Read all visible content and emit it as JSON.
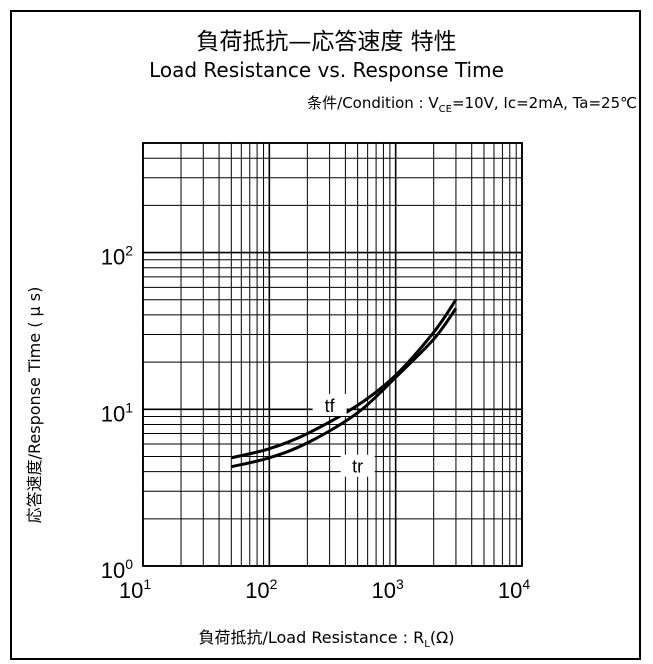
{
  "chart_data": {
    "type": "line",
    "title": "負荷抵抗—応答速度  特性",
    "subtitle": "Load Resistance vs. Response Time",
    "condition": {
      "prefix": "条件/Condition : V",
      "sub": "CE",
      "rest": "=10V, Ic=2mA, Ta=25℃"
    },
    "xlabel": {
      "main": "負荷抵抗/Load Resistance : R",
      "sub": "L",
      "unit": "(Ω)"
    },
    "ylabel": "応答速度/Response Time ( μ s)",
    "x_scale": "log",
    "y_scale": "log",
    "xlim": [
      10,
      10000
    ],
    "ylim": [
      1,
      500
    ],
    "grid": true,
    "x_ticks": [
      {
        "value": 10,
        "base": "10",
        "exp": "1"
      },
      {
        "value": 100,
        "base": "10",
        "exp": "2"
      },
      {
        "value": 1000,
        "base": "10",
        "exp": "3"
      },
      {
        "value": 10000,
        "base": "10",
        "exp": "4"
      }
    ],
    "y_ticks": [
      {
        "value": 1,
        "base": "10",
        "exp": "0"
      },
      {
        "value": 10,
        "base": "10",
        "exp": "1"
      },
      {
        "value": 100,
        "base": "10",
        "exp": "2"
      }
    ],
    "series": [
      {
        "name": "tf",
        "color": "#000000",
        "label_at": [
          300,
          10.5
        ],
        "points": [
          [
            50,
            4.9
          ],
          [
            100,
            5.6
          ],
          [
            200,
            7.0
          ],
          [
            500,
            10.6
          ],
          [
            1000,
            16.5
          ],
          [
            2000,
            31
          ],
          [
            3000,
            50
          ]
        ]
      },
      {
        "name": "tr",
        "color": "#000000",
        "label_at": [
          500,
          4.3
        ],
        "points": [
          [
            50,
            4.3
          ],
          [
            100,
            4.9
          ],
          [
            200,
            6.1
          ],
          [
            500,
            9.5
          ],
          [
            1000,
            16.0
          ],
          [
            2000,
            28
          ],
          [
            3000,
            44
          ]
        ]
      }
    ]
  }
}
